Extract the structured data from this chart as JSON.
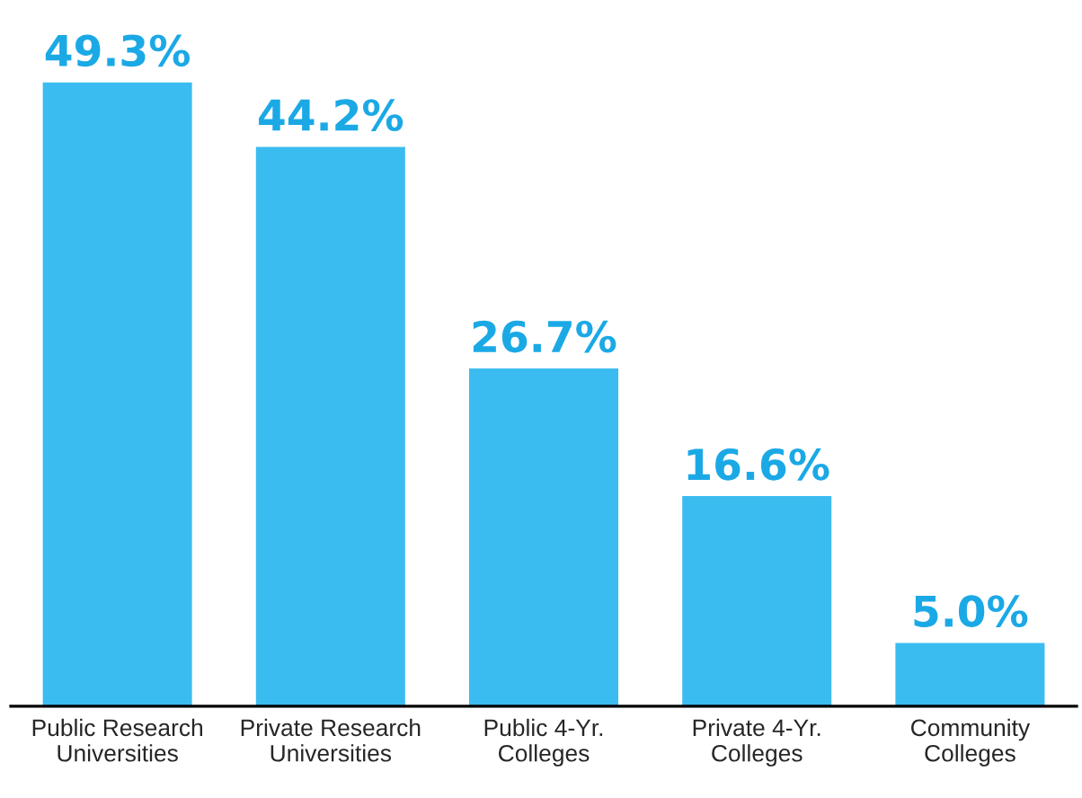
{
  "chart_data": {
    "type": "bar",
    "categories": [
      "Public Research\nUniversities",
      "Private Research\nUniversities",
      "Public 4-Yr.\nColleges",
      "Private 4-Yr.\nColleges",
      "Community\nColleges"
    ],
    "values": [
      49.3,
      44.2,
      26.7,
      16.6,
      5.0
    ],
    "value_labels": [
      "49.3%",
      "44.2%",
      "26.7%",
      "16.6%",
      "5.0%"
    ],
    "color": "#3bbcf0",
    "grid": false,
    "legend": false
  }
}
